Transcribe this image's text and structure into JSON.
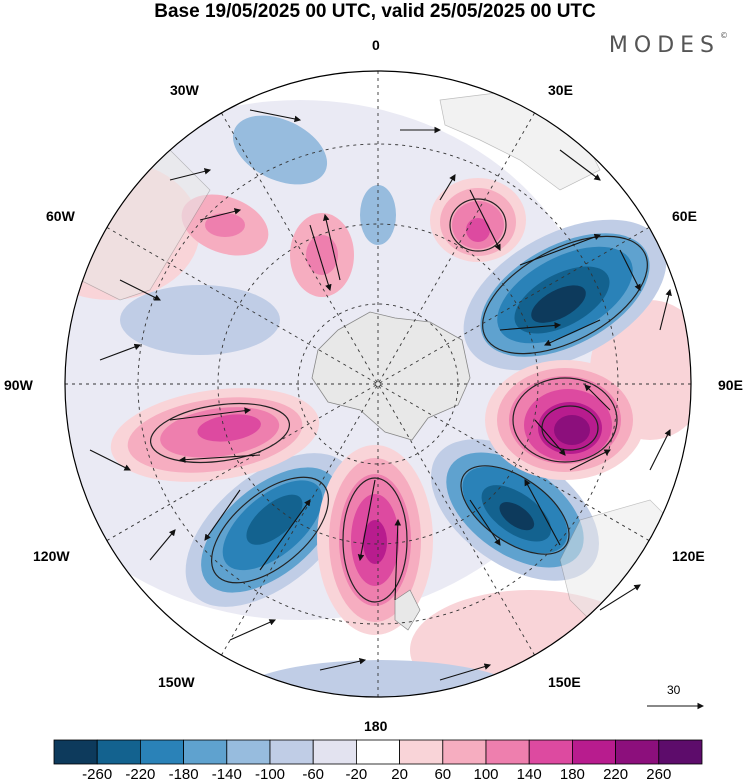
{
  "title": "Base 19/05/2025 00 UTC, valid 25/05/2025 00 UTC",
  "brand": "MODES",
  "brand_mark": "©",
  "projection": "south-polar-stereographic",
  "longitude_labels": {
    "lon_0": "0",
    "lon_30e": "30E",
    "lon_60e": "60E",
    "lon_90e": "90E",
    "lon_120e": "120E",
    "lon_150e": "150E",
    "lon_180": "180",
    "lon_150w": "150W",
    "lon_120w": "120W",
    "lon_90w": "90W",
    "lon_60w": "60W",
    "lon_30w": "30W"
  },
  "vector_reference": {
    "value": "30"
  },
  "colorbar": {
    "labels": [
      "-260",
      "-220",
      "-180",
      "-140",
      "-100",
      "-60",
      "-20",
      "20",
      "60",
      "100",
      "140",
      "180",
      "220",
      "260"
    ],
    "colors": [
      "#0d3a5c",
      "#13628f",
      "#2a82b8",
      "#5fa2cf",
      "#97bcde",
      "#c0cde6",
      "#e3e3f0",
      "#ffffff",
      "#f9d4d8",
      "#f6adc0",
      "#ee7fae",
      "#dd4aa0",
      "#b81c8e",
      "#8c0f7c",
      "#5d0c6b"
    ]
  },
  "anomaly_centers": [
    {
      "name": "neg-center-1",
      "value": "-260",
      "color": "#0d3a5c"
    },
    {
      "name": "neg-center-2",
      "value": "-260",
      "color": "#0d3a5c"
    },
    {
      "name": "neg-center-3",
      "value": "-220",
      "color": "#13628f"
    },
    {
      "name": "pos-center-1",
      "value": "260",
      "color": "#5d0c6b"
    },
    {
      "name": "pos-center-2",
      "value": "220",
      "color": "#8c0f7c"
    },
    {
      "name": "pos-center-3",
      "value": "180",
      "color": "#b81c8e"
    }
  ]
}
